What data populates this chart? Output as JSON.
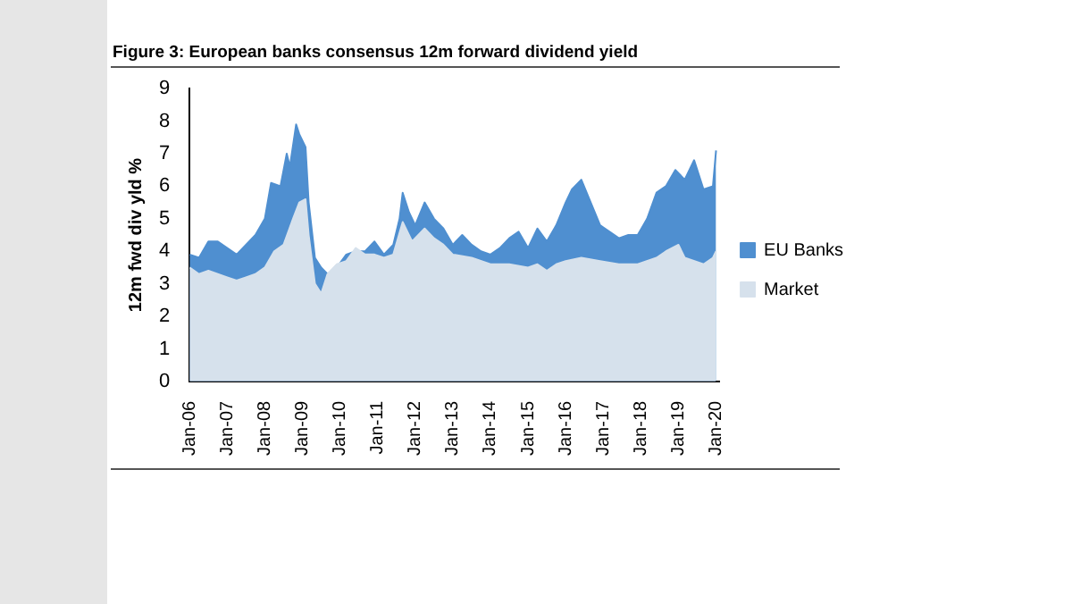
{
  "chart_data": {
    "type": "area",
    "title": "Figure 3: European banks consensus 12m forward dividend yield",
    "ylabel": "12m fwd div yld %",
    "legend": "right",
    "grid": false,
    "xlim": [
      "2006-01",
      "2020-02"
    ],
    "xticks": [
      {
        "value": "2006-01",
        "label": "Jan-06"
      },
      {
        "value": "2007-01",
        "label": "Jan-07"
      },
      {
        "value": "2008-01",
        "label": "Jan-08"
      },
      {
        "value": "2009-01",
        "label": "Jan-09"
      },
      {
        "value": "2010-01",
        "label": "Jan-10"
      },
      {
        "value": "2011-01",
        "label": "Jan-11"
      },
      {
        "value": "2012-01",
        "label": "Jan-12"
      },
      {
        "value": "2013-01",
        "label": "Jan-13"
      },
      {
        "value": "2014-01",
        "label": "Jan-14"
      },
      {
        "value": "2015-01",
        "label": "Jan-15"
      },
      {
        "value": "2016-01",
        "label": "Jan-16"
      },
      {
        "value": "2017-01",
        "label": "Jan-17"
      },
      {
        "value": "2018-01",
        "label": "Jan-18"
      },
      {
        "value": "2019-01",
        "label": "Jan-19"
      },
      {
        "value": "2020-01",
        "label": "Jan-20"
      }
    ],
    "ylim": [
      0,
      9
    ],
    "yticks": [
      0,
      1,
      2,
      3,
      4,
      5,
      6,
      7,
      8,
      9
    ],
    "series": [
      {
        "name": "EU Banks",
        "color": "#4f8fd0",
        "x": [
          "2006-01",
          "2006-04",
          "2006-07",
          "2006-10",
          "2007-01",
          "2007-04",
          "2007-07",
          "2007-10",
          "2008-01",
          "2008-03",
          "2008-06",
          "2008-08",
          "2008-09",
          "2008-11",
          "2008-12",
          "2009-02",
          "2009-03",
          "2009-05",
          "2009-07",
          "2009-09",
          "2009-12",
          "2010-03",
          "2010-06",
          "2010-09",
          "2010-12",
          "2011-03",
          "2011-06",
          "2011-08",
          "2011-09",
          "2011-11",
          "2012-01",
          "2012-04",
          "2012-07",
          "2012-10",
          "2013-01",
          "2013-04",
          "2013-07",
          "2013-10",
          "2014-01",
          "2014-04",
          "2014-07",
          "2014-10",
          "2015-01",
          "2015-04",
          "2015-07",
          "2015-10",
          "2016-01",
          "2016-03",
          "2016-06",
          "2016-09",
          "2016-12",
          "2017-03",
          "2017-06",
          "2017-09",
          "2017-12",
          "2018-03",
          "2018-06",
          "2018-09",
          "2018-12",
          "2019-03",
          "2019-06",
          "2019-09",
          "2019-12",
          "2020-01"
        ],
        "values": [
          3.9,
          3.8,
          4.3,
          4.3,
          4.1,
          3.9,
          4.2,
          4.5,
          5.0,
          6.1,
          6.0,
          7.0,
          6.6,
          7.9,
          7.6,
          7.2,
          5.5,
          3.8,
          3.5,
          3.3,
          3.5,
          3.9,
          4.0,
          4.0,
          4.3,
          3.9,
          4.2,
          5.0,
          5.8,
          5.2,
          4.8,
          5.5,
          5.0,
          4.7,
          4.2,
          4.5,
          4.2,
          4.0,
          3.9,
          4.1,
          4.4,
          4.6,
          4.1,
          4.7,
          4.3,
          4.8,
          5.5,
          5.9,
          6.2,
          5.5,
          4.8,
          4.6,
          4.4,
          4.5,
          4.5,
          5.0,
          5.8,
          6.0,
          6.5,
          6.2,
          6.8,
          5.9,
          6.0,
          7.1
        ]
      },
      {
        "name": "Market",
        "color": "#d6e1ec",
        "x": [
          "2006-01",
          "2006-04",
          "2006-07",
          "2006-10",
          "2007-01",
          "2007-04",
          "2007-07",
          "2007-10",
          "2008-01",
          "2008-04",
          "2008-07",
          "2008-10",
          "2008-12",
          "2009-02",
          "2009-03",
          "2009-05",
          "2009-07",
          "2009-09",
          "2009-12",
          "2010-03",
          "2010-06",
          "2010-09",
          "2010-12",
          "2011-03",
          "2011-06",
          "2011-09",
          "2011-12",
          "2012-04",
          "2012-07",
          "2012-10",
          "2013-01",
          "2013-07",
          "2014-01",
          "2014-07",
          "2015-01",
          "2015-04",
          "2015-07",
          "2015-10",
          "2016-01",
          "2016-06",
          "2016-12",
          "2017-06",
          "2017-12",
          "2018-06",
          "2018-09",
          "2019-01",
          "2019-03",
          "2019-09",
          "2019-12",
          "2020-01"
        ],
        "values": [
          3.5,
          3.3,
          3.4,
          3.3,
          3.2,
          3.1,
          3.2,
          3.3,
          3.5,
          4.0,
          4.2,
          5.0,
          5.5,
          5.6,
          4.5,
          3.0,
          2.7,
          3.3,
          3.6,
          3.7,
          4.1,
          3.9,
          3.9,
          3.8,
          3.9,
          4.9,
          4.3,
          4.7,
          4.4,
          4.2,
          3.9,
          3.8,
          3.6,
          3.6,
          3.5,
          3.6,
          3.4,
          3.6,
          3.7,
          3.8,
          3.7,
          3.6,
          3.6,
          3.8,
          4.0,
          4.2,
          3.8,
          3.6,
          3.8,
          4.0
        ]
      }
    ]
  }
}
